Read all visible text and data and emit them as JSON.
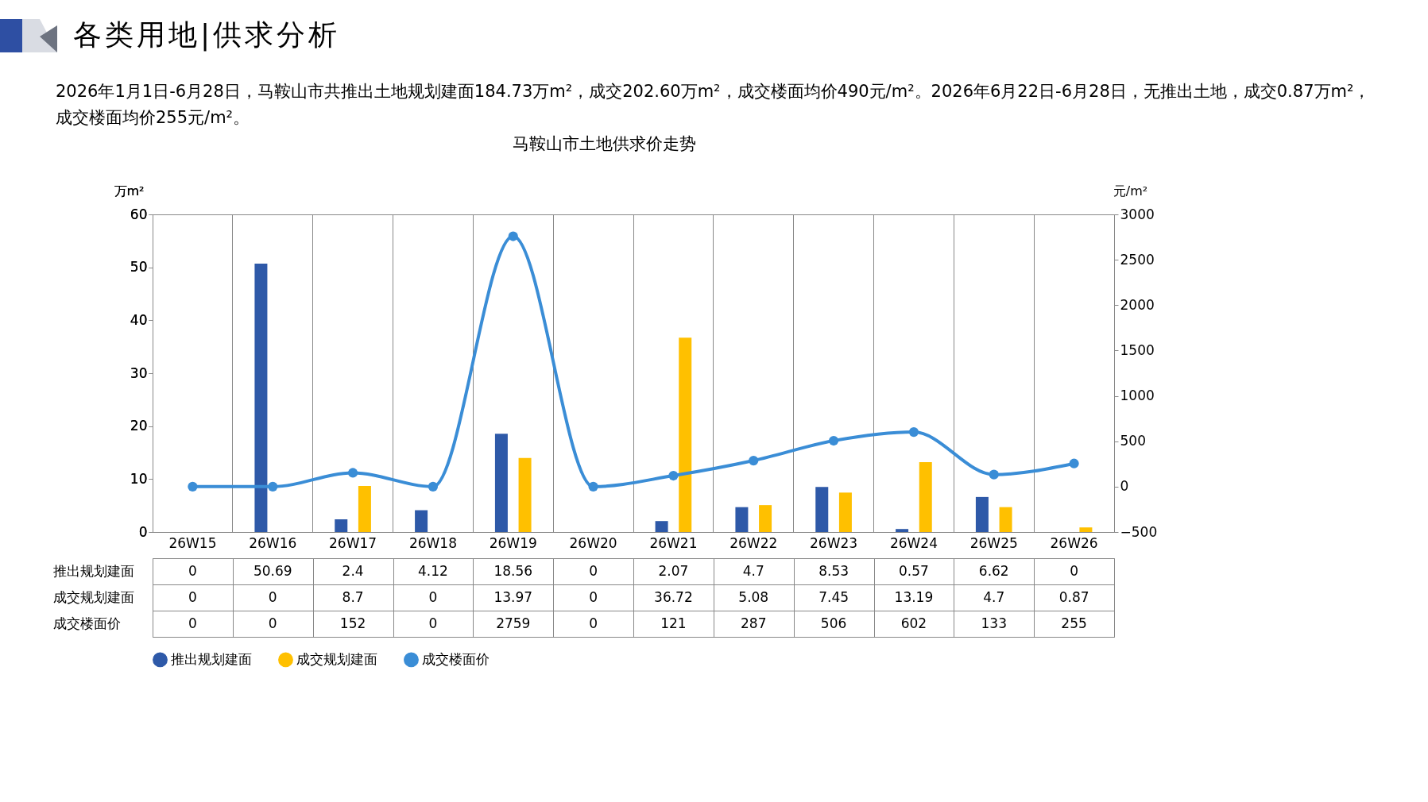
{
  "chart_data": {
    "type": "bar",
    "title": "马鞍山市土地供求价走势",
    "subtitle": "2026年1月1日-6月28日，马鞍山市共推出土地规划建面184.73万m²，成交202.60万m²，成交楼面均价490元/m²。2026年6月22日-6月28日，无推出土地，成交0.87万m²，成交楼面均价255元/m²。",
    "annotations": [
      "各类用地|供求分析"
    ],
    "categories": [
      "26W15",
      "26W16",
      "26W17",
      "26W18",
      "26W19",
      "26W20",
      "26W21",
      "26W22",
      "26W23",
      "26W24",
      "26W25",
      "26W26"
    ],
    "series": [
      {
        "name": "推出规划建面",
        "color": "#2e59a8",
        "values": [
          0,
          50.69,
          2.4,
          4.12,
          18.56,
          0,
          2.07,
          4.7,
          8.53,
          0.57,
          6.62,
          0
        ]
      },
      {
        "name": "成交规划建面",
        "color": "#ffc000",
        "values": [
          0,
          0,
          8.7,
          0,
          13.97,
          0,
          36.72,
          5.08,
          7.45,
          13.19,
          4.7,
          0.87
        ]
      },
      {
        "name": "成交楼面价",
        "type": "line",
        "axis": "y2",
        "color": "#3a8dd6",
        "values": [
          0,
          0,
          152,
          0,
          2759,
          0,
          121,
          287,
          506,
          602,
          133,
          255
        ]
      }
    ],
    "ylabel": "万m²",
    "y2label": "元/m²",
    "ylim": [
      0,
      60
    ],
    "yticks": [
      0,
      10,
      20,
      30,
      40,
      50,
      60
    ],
    "y2lim": [
      -500,
      3000
    ],
    "y2ticks": [
      -500,
      0,
      500,
      1000,
      1500,
      2000,
      2500,
      3000
    ],
    "data_labels": true,
    "legend": "bottom",
    "marker": "circle",
    "grid": false
  }
}
